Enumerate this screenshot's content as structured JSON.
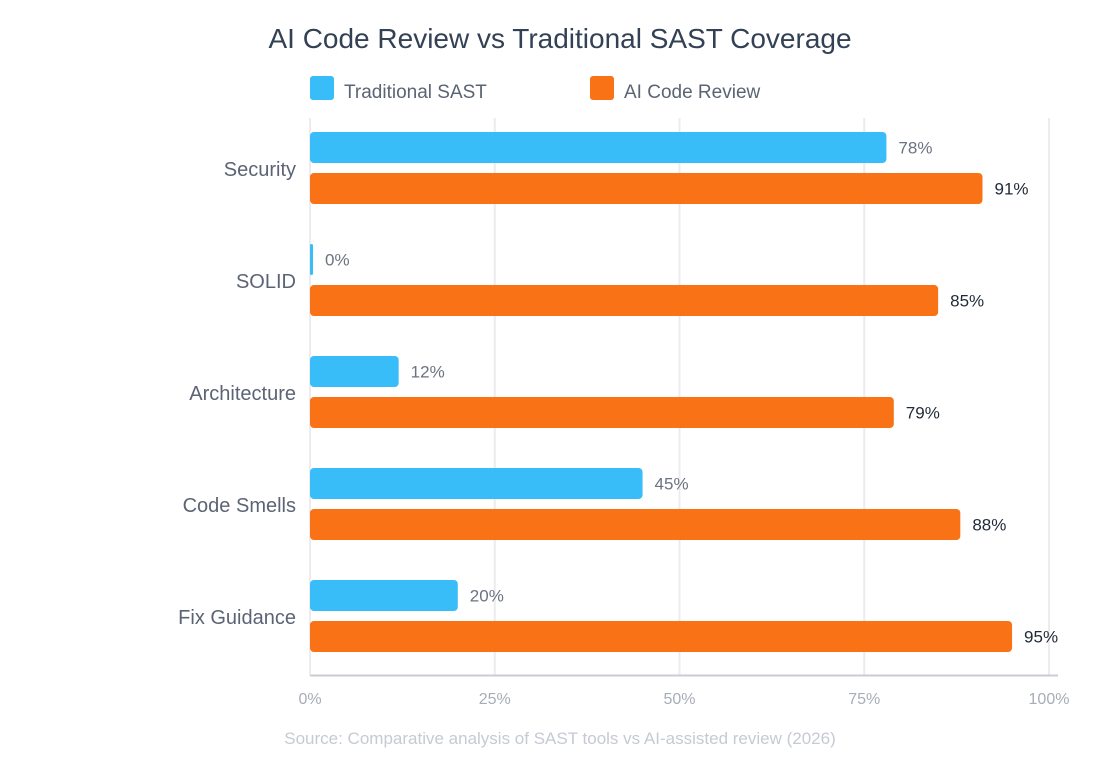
{
  "chart_data": {
    "type": "bar",
    "orientation": "horizontal",
    "title": "AI Code Review vs Traditional SAST Coverage",
    "categories": [
      "Security",
      "SOLID",
      "Architecture",
      "Code Smells",
      "Fix Guidance"
    ],
    "series": [
      {
        "name": "Traditional SAST",
        "color": "#38bdf8",
        "values": [
          78,
          0,
          12,
          45,
          20
        ],
        "labels": [
          "78%",
          "0%",
          "12%",
          "45%",
          "20%"
        ]
      },
      {
        "name": "AI Code Review",
        "color": "#f97316",
        "values": [
          91,
          85,
          79,
          88,
          95
        ],
        "labels": [
          "91%",
          "85%",
          "79%",
          "88%",
          "95%"
        ]
      }
    ],
    "xlim": [
      0,
      100
    ],
    "xticks": [
      0,
      25,
      50,
      75,
      100
    ],
    "xtick_labels": [
      "0%",
      "25%",
      "50%",
      "75%",
      "100%"
    ],
    "grid": true,
    "legend": "top",
    "source": "Source: Comparative analysis of SAST tools vs AI-assisted review (2026)"
  }
}
